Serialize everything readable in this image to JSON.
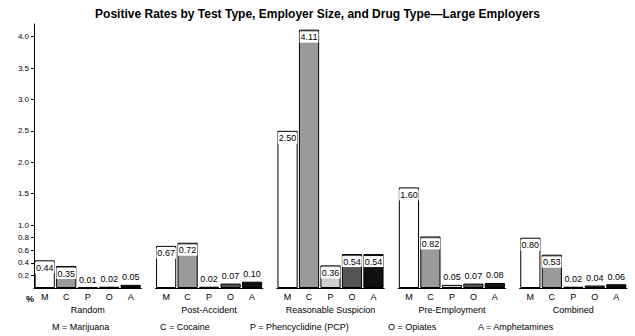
{
  "chart_data": {
    "type": "bar",
    "title": "Positive Rates by Test Type, Employer Size, and Drug Type—Large Employers",
    "y_label": "%",
    "categories": [
      "M",
      "C",
      "P",
      "O",
      "A"
    ],
    "colors": [
      "#ffffff",
      "#9a9a9a",
      "#cfcfcf",
      "#555555",
      "#111111"
    ],
    "series": [
      {
        "name": "Random",
        "values": [
          0.44,
          0.35,
          0.01,
          0.02,
          0.05
        ],
        "value_labels": [
          "0.44",
          "0.35",
          "0.01",
          "0.02",
          "0.05"
        ]
      },
      {
        "name": "Post-Accident",
        "values": [
          0.67,
          0.72,
          0.02,
          0.07,
          0.1
        ],
        "value_labels": [
          "0.67",
          "0.72",
          "0.02",
          "0.07",
          "0.10"
        ]
      },
      {
        "name": "Reasonable Suspicion",
        "values": [
          2.5,
          4.11,
          0.36,
          0.54,
          0.54
        ],
        "value_labels": [
          "2.50",
          "4.11",
          "0.36",
          "0.54",
          "0.54"
        ]
      },
      {
        "name": "Pre-Employment",
        "values": [
          1.6,
          0.82,
          0.05,
          0.07,
          0.08
        ],
        "value_labels": [
          "1.60",
          "0.82",
          "0.05",
          "0.07",
          "0.08"
        ]
      },
      {
        "name": "Combined",
        "values": [
          0.8,
          0.53,
          0.02,
          0.04,
          0.06
        ],
        "value_labels": [
          "0.80",
          "0.53",
          "0.02",
          "0.04",
          "0.06"
        ]
      }
    ],
    "annotations": [
      "M = Marijuana",
      "C = Cocaine",
      "P = Phencyclidine (PCP)",
      "O = Opiates",
      "A = Amphetamines"
    ],
    "ylim": [
      0,
      4.2
    ],
    "yticks": [
      0.2,
      0.4,
      0.6,
      0.8,
      {
        "value": 1,
        "label": "1.0"
      },
      1.5,
      {
        "value": 2,
        "label": "2.0"
      },
      2.5,
      {
        "value": 3,
        "label": "3.0"
      },
      3.5,
      {
        "value": 4,
        "label": "4.0"
      }
    ],
    "data_labels": true,
    "grid": false
  }
}
